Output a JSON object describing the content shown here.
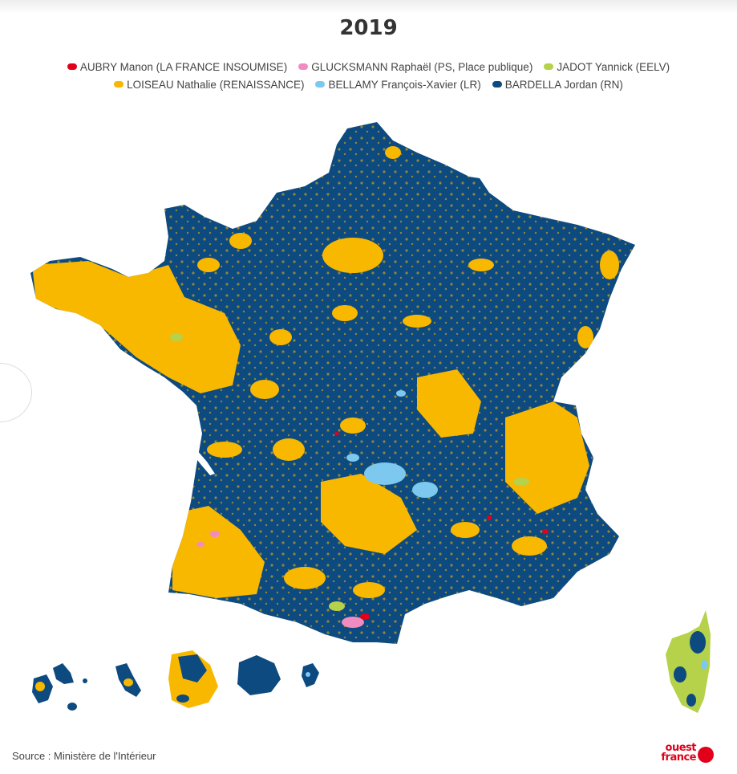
{
  "title": "2019",
  "legend": {
    "row1": [
      {
        "label": "AUBRY Manon (LA FRANCE INSOUMISE)",
        "color": "#e2001a"
      },
      {
        "label": "GLUCKSMANN Raphaël (PS, Place publique)",
        "color": "#f08cbf"
      },
      {
        "label": "JADOT Yannick (EELV)",
        "color": "#b6d14a"
      }
    ],
    "row2": [
      {
        "label": "LOISEAU Nathalie (RENAISSANCE)",
        "color": "#f9b800"
      },
      {
        "label": "BELLAMY François-Xavier (LR)",
        "color": "#7dc8ef"
      },
      {
        "label": "BARDELLA Jordan (RN)",
        "color": "#0d4a80"
      }
    ]
  },
  "source": "Source : Ministère de l'Intérieur",
  "logo": {
    "line1": "ouest",
    "line2": "france"
  }
}
